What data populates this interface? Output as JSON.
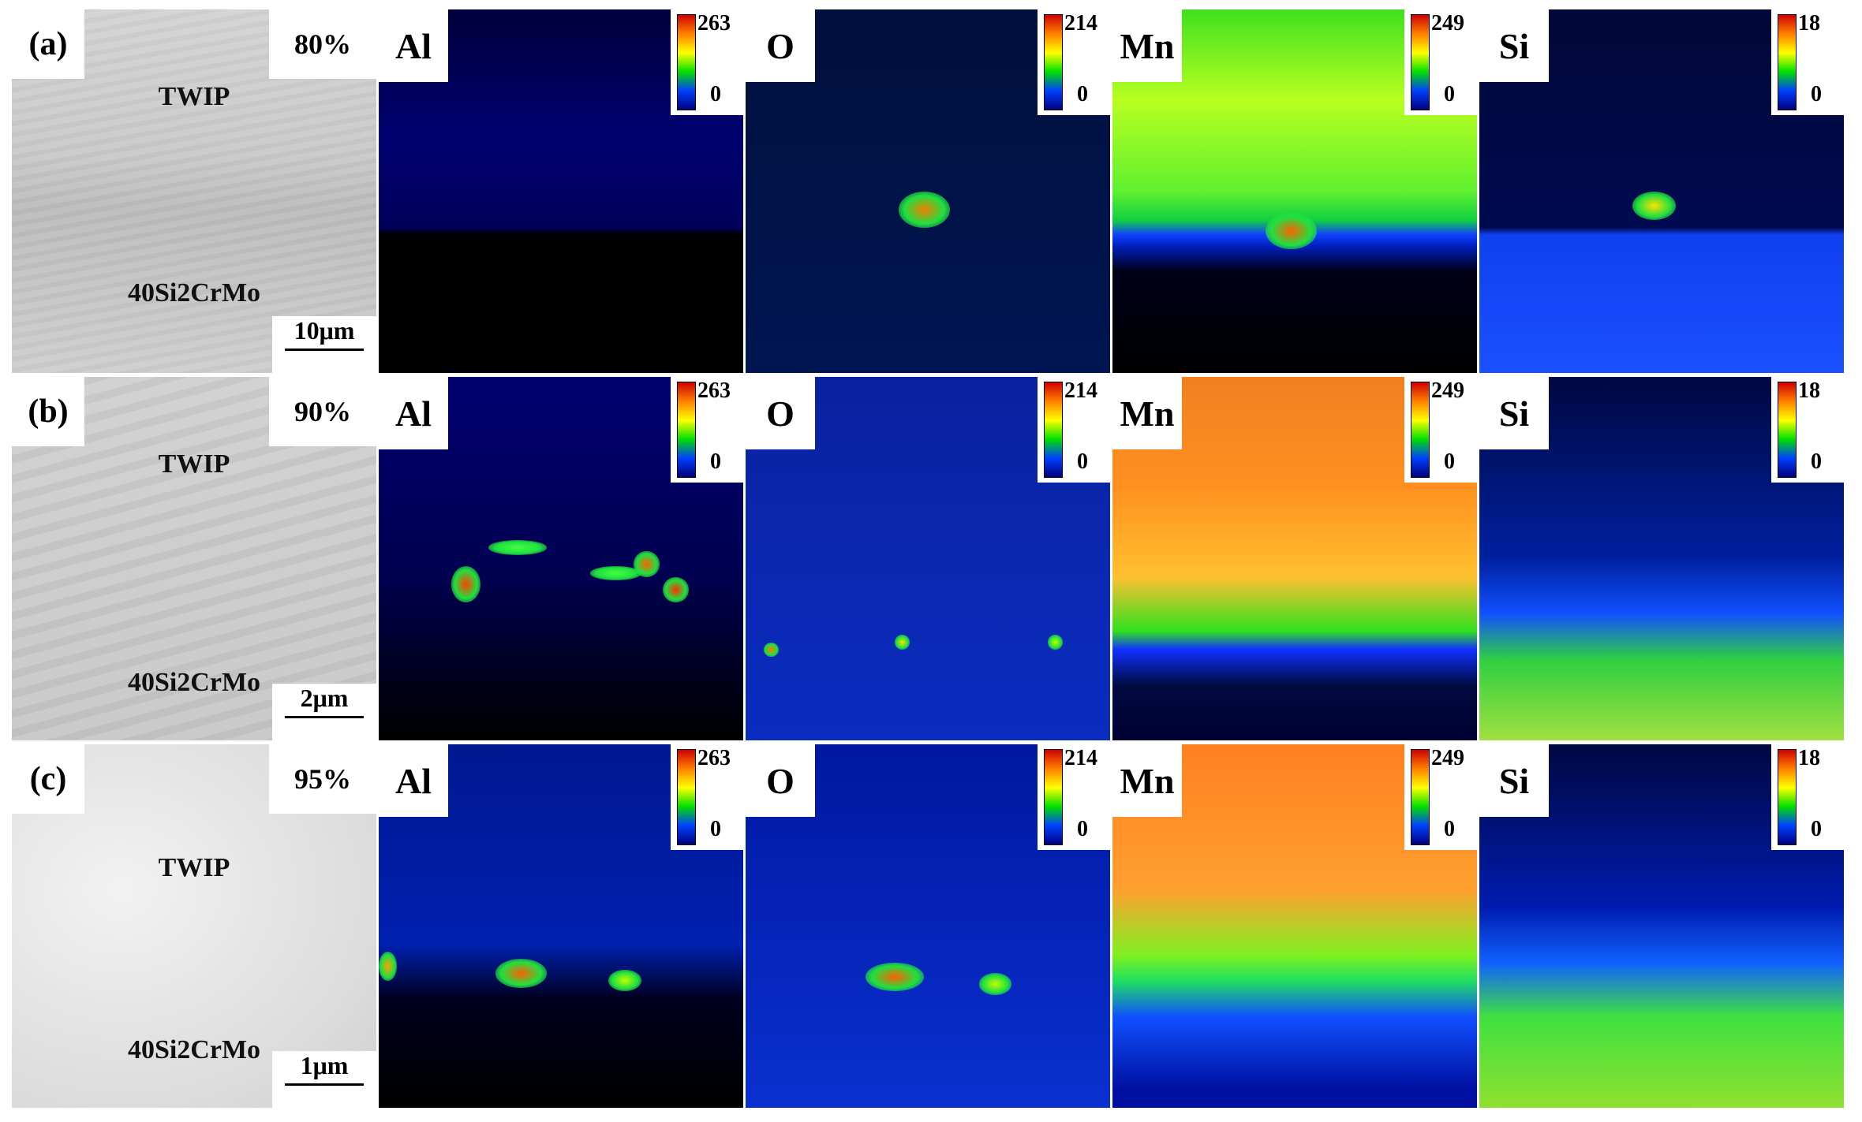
{
  "rows": [
    {
      "label": "(a)",
      "percent": "80%",
      "top": "TWIP",
      "bottom": "40Si2CrMo",
      "scale": "10μm",
      "maps": [
        {
          "element": "Al",
          "max": 263,
          "min": 0
        },
        {
          "element": "O",
          "max": 214,
          "min": 0
        },
        {
          "element": "Mn",
          "max": 249,
          "min": 0
        },
        {
          "element": "Si",
          "max": 18,
          "min": 0
        }
      ]
    },
    {
      "label": "(b)",
      "percent": "90%",
      "top": "TWIP",
      "bottom": "40Si2CrMo",
      "scale": "2μm",
      "maps": [
        {
          "element": "Al",
          "max": 263,
          "min": 0
        },
        {
          "element": "O",
          "max": 214,
          "min": 0
        },
        {
          "element": "Mn",
          "max": 249,
          "min": 0
        },
        {
          "element": "Si",
          "max": 18,
          "min": 0
        }
      ]
    },
    {
      "label": "(c)",
      "percent": "95%",
      "top": "TWIP",
      "bottom": "40Si2CrMo",
      "scale": "1μm",
      "maps": [
        {
          "element": "Al",
          "max": 263,
          "min": 0
        },
        {
          "element": "O",
          "max": 214,
          "min": 0
        },
        {
          "element": "Mn",
          "max": 249,
          "min": 0
        },
        {
          "element": "Si",
          "max": 18,
          "min": 0
        }
      ]
    }
  ]
}
